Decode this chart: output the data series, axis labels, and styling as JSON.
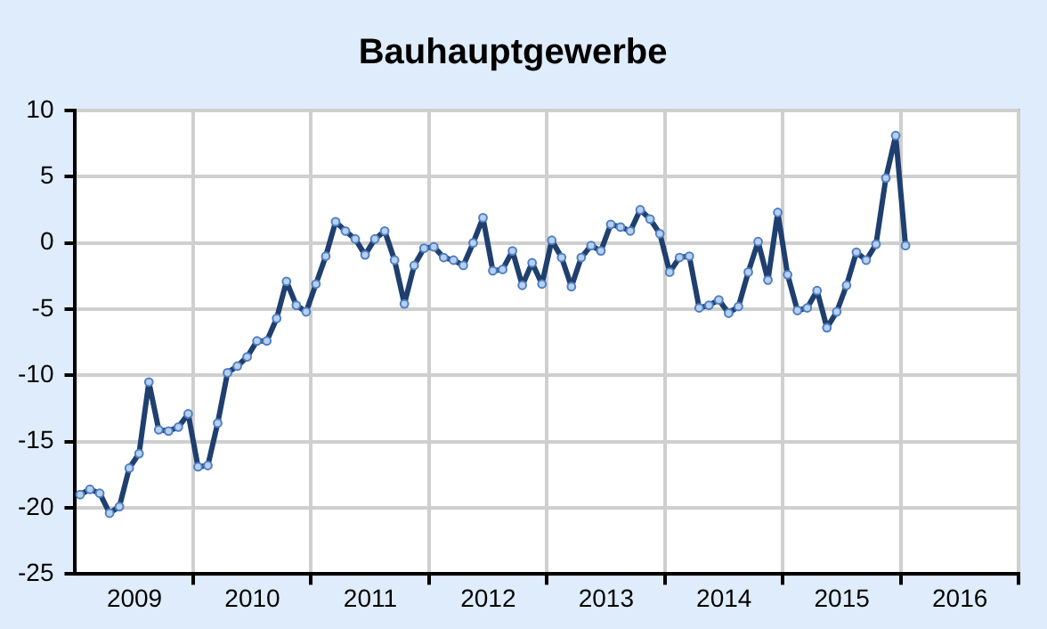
{
  "chart_data": {
    "type": "line",
    "title": "Bauhauptgewerbe",
    "x": [
      "2009-01",
      "2009-02",
      "2009-03",
      "2009-04",
      "2009-05",
      "2009-06",
      "2009-07",
      "2009-08",
      "2009-09",
      "2009-10",
      "2009-11",
      "2009-12",
      "2010-01",
      "2010-02",
      "2010-03",
      "2010-04",
      "2010-05",
      "2010-06",
      "2010-07",
      "2010-08",
      "2010-09",
      "2010-10",
      "2010-11",
      "2010-12",
      "2011-01",
      "2011-02",
      "2011-03",
      "2011-04",
      "2011-05",
      "2011-06",
      "2011-07",
      "2011-08",
      "2011-09",
      "2011-10",
      "2011-11",
      "2011-12",
      "2012-01",
      "2012-02",
      "2012-03",
      "2012-04",
      "2012-05",
      "2012-06",
      "2012-07",
      "2012-08",
      "2012-09",
      "2012-10",
      "2012-11",
      "2012-12",
      "2013-01",
      "2013-02",
      "2013-03",
      "2013-04",
      "2013-05",
      "2013-06",
      "2013-07",
      "2013-08",
      "2013-09",
      "2013-10",
      "2013-11",
      "2013-12",
      "2014-01",
      "2014-02",
      "2014-03",
      "2014-04",
      "2014-05",
      "2014-06",
      "2014-07",
      "2014-08",
      "2014-09",
      "2014-10",
      "2014-11",
      "2014-12",
      "2015-01",
      "2015-02",
      "2015-03",
      "2015-04",
      "2015-05",
      "2015-06",
      "2015-07",
      "2015-08",
      "2015-09",
      "2015-10",
      "2015-11",
      "2015-12",
      "2016-01"
    ],
    "series": [
      {
        "color": "#1f3f6e",
        "values": [
          -19.0,
          -18.6,
          -18.9,
          -20.4,
          -19.9,
          -17.0,
          -15.9,
          -10.5,
          -14.1,
          -14.2,
          -13.9,
          -12.9,
          -16.9,
          -16.8,
          -13.6,
          -9.8,
          -9.3,
          -8.6,
          -7.4,
          -7.4,
          -5.7,
          -2.9,
          -4.7,
          -5.2,
          -3.1,
          -1.0,
          1.6,
          0.9,
          0.3,
          -0.9,
          0.3,
          0.9,
          -1.3,
          -4.6,
          -1.7,
          -0.4,
          -0.3,
          -1.1,
          -1.3,
          -1.7,
          0.0,
          1.9,
          -2.1,
          -2.0,
          -0.6,
          -3.2,
          -1.5,
          -3.1,
          0.2,
          -1.1,
          -3.3,
          -1.1,
          -0.2,
          -0.6,
          1.4,
          1.2,
          0.9,
          2.5,
          1.8,
          0.7,
          -2.2,
          -1.1,
          -1.0,
          -4.9,
          -4.7,
          -4.3,
          -5.3,
          -4.8,
          -2.2,
          0.1,
          -2.8,
          2.3,
          -2.4,
          -5.1,
          -4.9,
          -3.6,
          -6.4,
          -5.2,
          -3.2,
          -0.7,
          -1.3,
          -0.1,
          4.9,
          8.1,
          -0.2
        ]
      }
    ],
    "xlim": [
      "2009-01-01",
      "2017-01-01"
    ],
    "xticks": [
      {
        "value": "2009-07-02",
        "label": "2009"
      },
      {
        "value": "2010-01-01",
        "label": null
      },
      {
        "value": "2010-07-02",
        "label": "2010"
      },
      {
        "value": "2011-01-01",
        "label": null
      },
      {
        "value": "2011-07-02",
        "label": "2011"
      },
      {
        "value": "2012-01-01",
        "label": null
      },
      {
        "value": "2012-07-02",
        "label": "2012"
      },
      {
        "value": "2013-01-01",
        "label": null
      },
      {
        "value": "2013-07-02",
        "label": "2013"
      },
      {
        "value": "2014-01-01",
        "label": null
      },
      {
        "value": "2014-07-02",
        "label": "2014"
      },
      {
        "value": "2015-01-01",
        "label": null
      },
      {
        "value": "2015-07-02",
        "label": "2015"
      },
      {
        "value": "2016-01-01",
        "label": null
      },
      {
        "value": "2016-07-02",
        "label": "2016"
      },
      {
        "value": "2017-01-01",
        "label": null
      }
    ],
    "ylim": [
      -25,
      10
    ],
    "yticks": [
      -25,
      -20,
      -15,
      -10,
      -5,
      0,
      5,
      10
    ],
    "grid": true,
    "marker": "circle",
    "line_style": "solid"
  }
}
